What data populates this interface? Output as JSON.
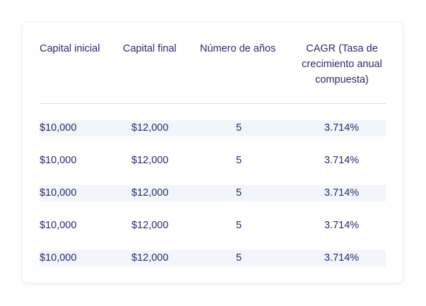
{
  "table": {
    "headers": [
      "Capital inicial",
      "Capital final",
      "Número de años",
      "CAGR (Tasa de crecimiento anual compuesta)"
    ],
    "rows": [
      [
        "$10,000",
        "$12,000",
        "5",
        "3.714%"
      ],
      [
        "$10,000",
        "$12,000",
        "5",
        "3.714%"
      ],
      [
        "$10,000",
        "$12,000",
        "5",
        "3.714%"
      ],
      [
        "$10,000",
        "$12,000",
        "5",
        "3.714%"
      ],
      [
        "$10,000",
        "$12,000",
        "5",
        "3.714%"
      ]
    ]
  },
  "colors": {
    "text": "#2a2a6a",
    "row_shade": "#f2f5fa",
    "divider": "#d9dce6"
  }
}
